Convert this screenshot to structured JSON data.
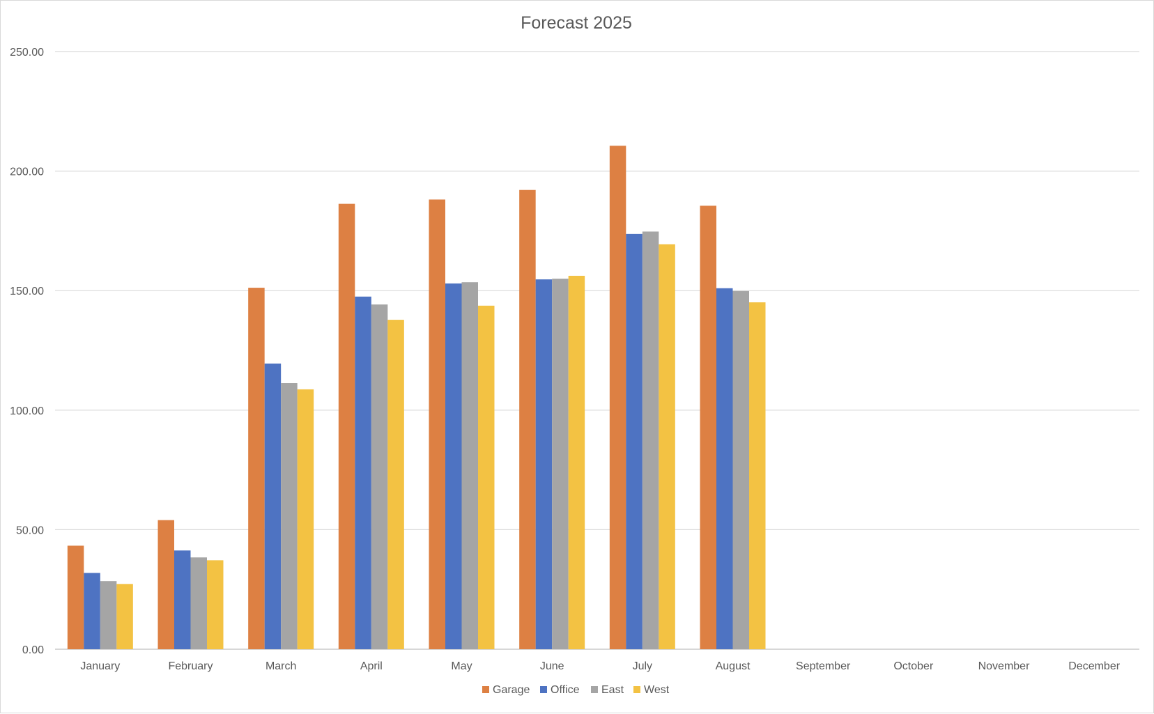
{
  "chart_data": {
    "type": "bar",
    "title": "Forecast 2025",
    "xlabel": "",
    "ylabel": "",
    "categories": [
      "January",
      "February",
      "March",
      "April",
      "May",
      "June",
      "July",
      "August",
      "September",
      "October",
      "November",
      "December"
    ],
    "series": [
      {
        "name": "Garage",
        "color": "#DD8043",
        "values": [
          43.3,
          54.0,
          151.2,
          186.3,
          188.1,
          192.1,
          210.6,
          185.5,
          null,
          null,
          null,
          null
        ]
      },
      {
        "name": "Office",
        "color": "#4E73C2",
        "values": [
          31.9,
          41.3,
          119.5,
          147.5,
          153.0,
          154.7,
          173.7,
          151.0,
          null,
          null,
          null,
          null
        ]
      },
      {
        "name": "East",
        "color": "#A5A5A5",
        "values": [
          28.5,
          38.4,
          111.3,
          144.2,
          153.5,
          155.0,
          174.7,
          149.8,
          null,
          null,
          null,
          null
        ]
      },
      {
        "name": "West",
        "color": "#F3C243",
        "values": [
          27.3,
          37.2,
          108.7,
          137.8,
          143.7,
          156.2,
          169.4,
          145.1,
          null,
          null,
          null,
          null
        ]
      }
    ],
    "ylim": [
      0,
      250
    ],
    "yticks": [
      "0.00",
      "50.00",
      "100.00",
      "150.00",
      "200.00",
      "250.00"
    ],
    "grid": true,
    "legend_position": "bottom"
  }
}
